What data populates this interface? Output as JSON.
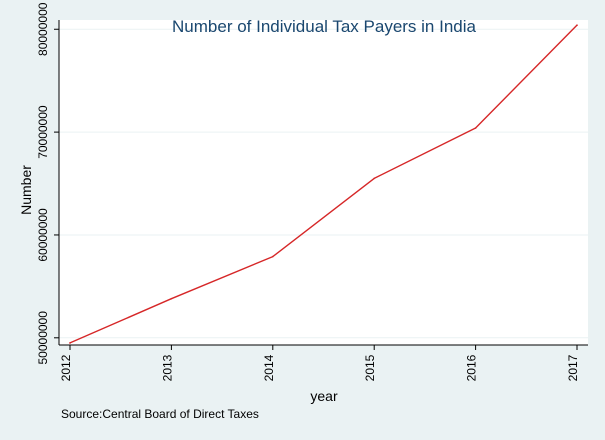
{
  "chart_data": {
    "type": "line",
    "title": "Number of Individual Tax Payers in India",
    "xlabel": "year",
    "ylabel": "Number",
    "note": "Source:Central Board of Direct Taxes",
    "x": [
      2012,
      2013,
      2014,
      2015,
      2016,
      2017
    ],
    "series": [
      {
        "values": [
          49500000,
          53800000,
          57900000,
          65500000,
          70400000,
          80400000
        ],
        "color": "#d62728"
      }
    ],
    "xlim": [
      2012,
      2017
    ],
    "ylim": [
      49300000,
      80900000
    ],
    "yticks": [
      50000000,
      60000000,
      70000000,
      80000000
    ],
    "xticks": [
      2012,
      2013,
      2014,
      2015,
      2016,
      2017
    ],
    "ytick_labels": [
      "50000000",
      "60000000",
      "70000000",
      "80000000"
    ],
    "xtick_labels": [
      "2012",
      "2013",
      "2014",
      "2015",
      "2016",
      "2017"
    ],
    "grid": true,
    "legend": "none"
  }
}
